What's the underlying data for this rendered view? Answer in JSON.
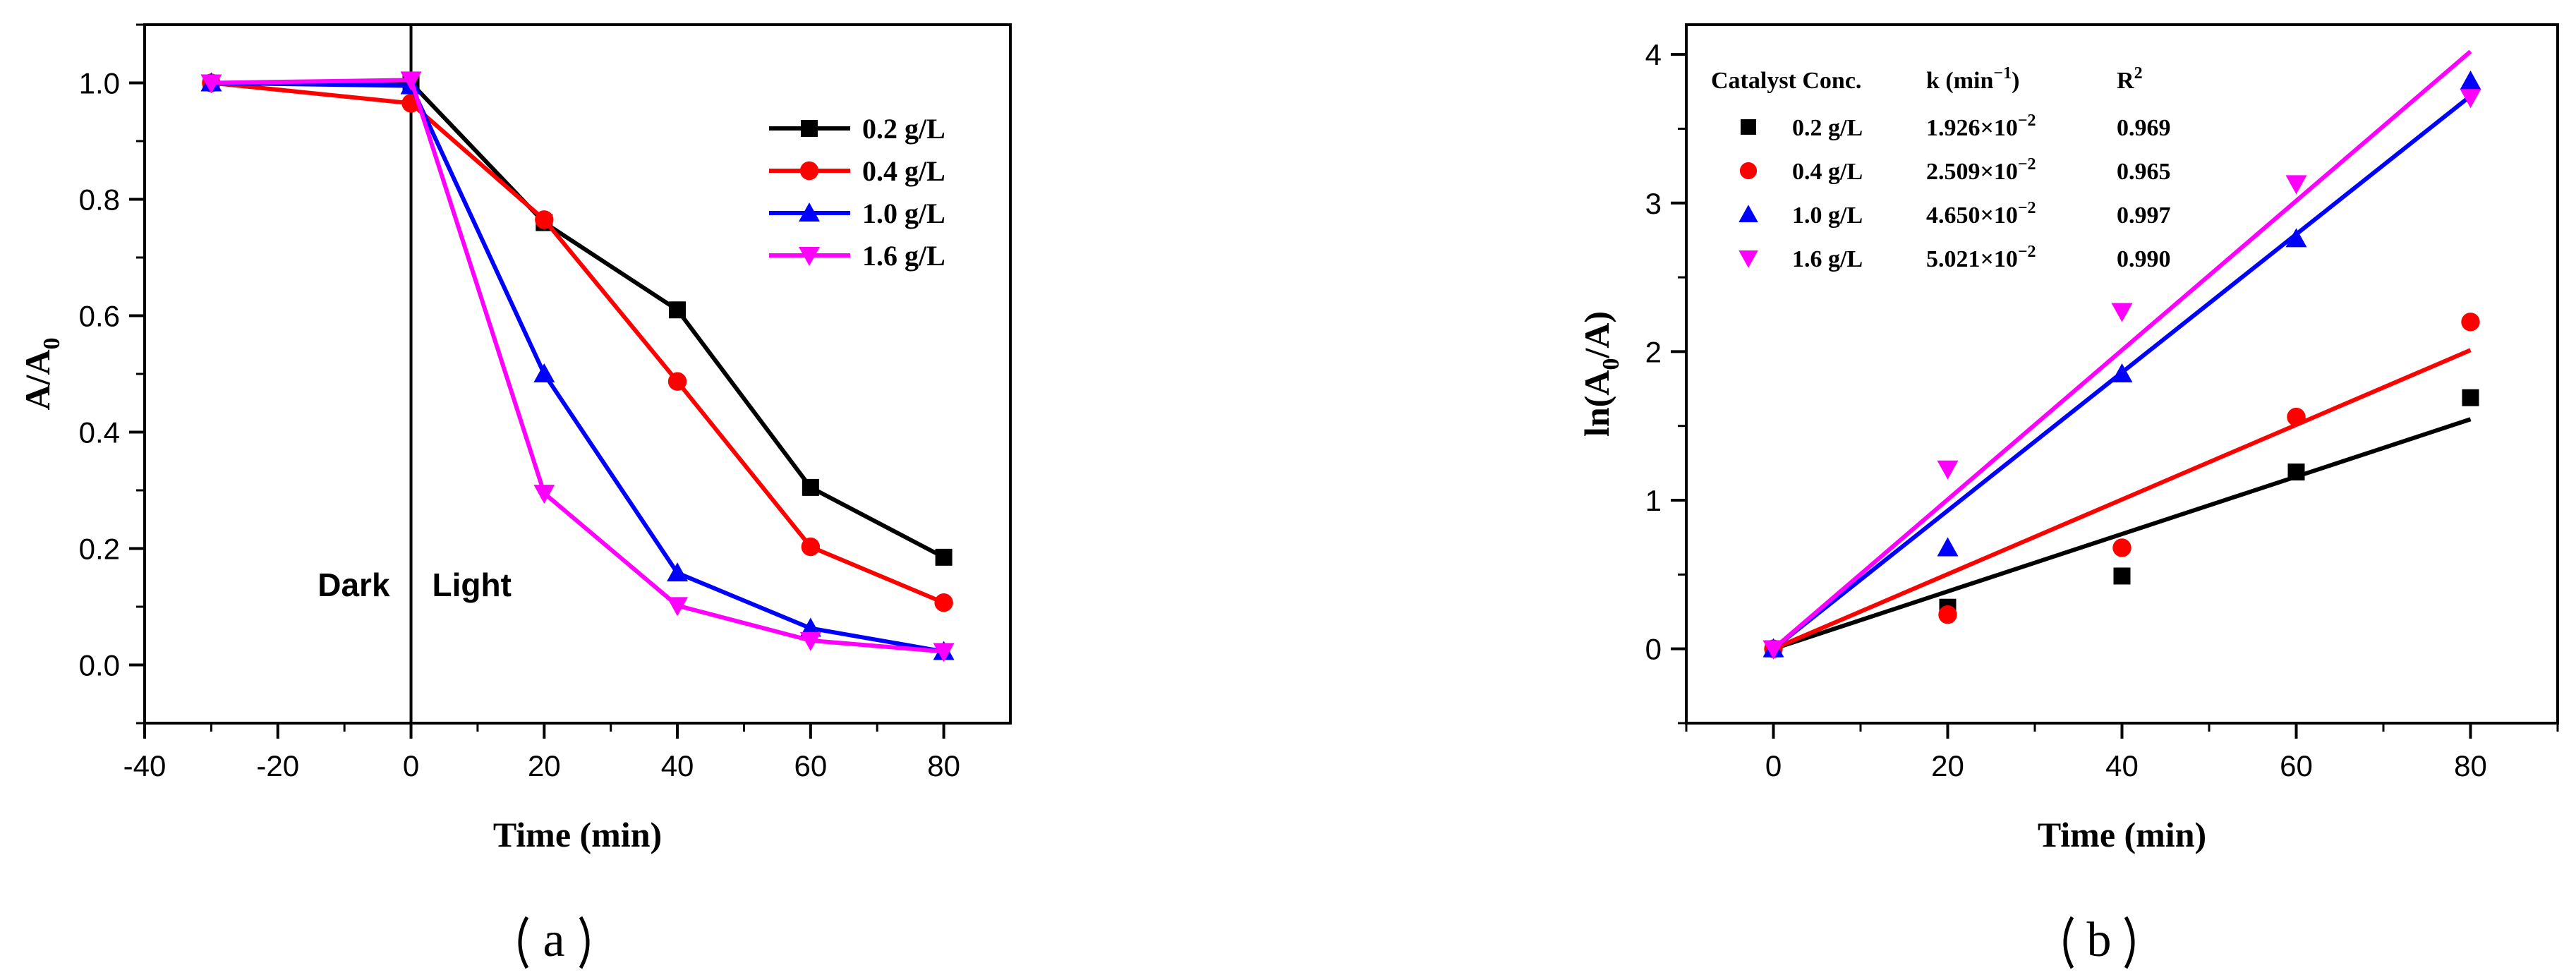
{
  "chart_data": [
    {
      "id": "a",
      "type": "line",
      "caption": "a",
      "xlabel": "Time (min)",
      "ylabel": "A/A",
      "ylabel_sub": "0",
      "xlim": [
        -40,
        90
      ],
      "ylim": [
        -0.1,
        1.1
      ],
      "xticks": [
        -40,
        -20,
        0,
        20,
        40,
        60,
        80
      ],
      "xtick_labels": [
        "-40",
        "-20",
        "0",
        "20",
        "40",
        "60",
        "80"
      ],
      "yticks": [
        0.0,
        0.2,
        0.4,
        0.6,
        0.8,
        1.0
      ],
      "ytick_labels": [
        "0.0",
        "0.2",
        "0.4",
        "0.6",
        "0.8",
        "1.0"
      ],
      "divider_x": 0,
      "annotations": [
        "Dark",
        "Light"
      ],
      "legend_position": "top-right",
      "x": [
        -30,
        0,
        20,
        40,
        60,
        80
      ],
      "series": [
        {
          "name": "0.2 g/L",
          "color": "#000000",
          "marker": "square",
          "values": [
            1.0,
            1.0,
            0.76,
            0.61,
            0.305,
            0.185
          ]
        },
        {
          "name": "0.4 g/L",
          "color": "#ff0000",
          "marker": "circle",
          "values": [
            1.0,
            0.965,
            0.765,
            0.487,
            0.203,
            0.107
          ]
        },
        {
          "name": "1.0 g/L",
          "color": "#0000ff",
          "marker": "triangle-up",
          "values": [
            1.0,
            0.995,
            0.5,
            0.158,
            0.063,
            0.023
          ]
        },
        {
          "name": "1.6 g/L",
          "color": "#ff00ff",
          "marker": "triangle-down",
          "values": [
            1.0,
            1.005,
            0.295,
            0.102,
            0.042,
            0.023
          ]
        }
      ]
    },
    {
      "id": "b",
      "type": "scatter",
      "caption": "b",
      "xlabel": "Time (min)",
      "ylabel": "ln(A",
      "ylabel_sub": "0",
      "ylabel_tail": "/A)",
      "xlim": [
        -10,
        90
      ],
      "ylim": [
        -0.5,
        4.2
      ],
      "xticks": [
        0,
        20,
        40,
        60,
        80
      ],
      "xtick_labels": [
        "0",
        "20",
        "40",
        "60",
        "80"
      ],
      "yticks": [
        0,
        1,
        2,
        3,
        4
      ],
      "ytick_labels": [
        "0",
        "1",
        "2",
        "3",
        "4"
      ],
      "x": [
        0,
        20,
        40,
        60,
        80
      ],
      "table_headers": {
        "catalyst": "Catalyst Conc.",
        "k": "k (min",
        "k_sup": "−1",
        "k_tail": ")",
        "r2": "R",
        "r2_sup": "2"
      },
      "series": [
        {
          "name": "0.2 g/L",
          "color": "#000000",
          "marker": "square",
          "values": [
            0,
            0.28,
            0.49,
            1.19,
            1.69
          ],
          "fit_end": 1.545,
          "k_mant": "1.926×10",
          "k_exp": "−2",
          "r2": "0.969"
        },
        {
          "name": "0.4 g/L",
          "color": "#ff0000",
          "marker": "circle",
          "values": [
            0,
            0.23,
            0.68,
            1.56,
            2.2
          ],
          "fit_end": 2.01,
          "k_mant": "2.509×10",
          "k_exp": "−2",
          "r2": "0.965"
        },
        {
          "name": "1.0 g/L",
          "color": "#0000ff",
          "marker": "triangle-up",
          "values": [
            0,
            0.68,
            1.85,
            2.76,
            3.82
          ],
          "fit_end": 3.72,
          "k_mant": "4.650×10",
          "k_exp": "−2",
          "r2": "0.997"
        },
        {
          "name": "1.6 g/L",
          "color": "#ff00ff",
          "marker": "triangle-down",
          "values": [
            0,
            1.21,
            2.27,
            3.13,
            3.71
          ],
          "fit_end": 4.02,
          "k_mant": "5.021×10",
          "k_exp": "−2",
          "r2": "0.990"
        }
      ]
    }
  ]
}
